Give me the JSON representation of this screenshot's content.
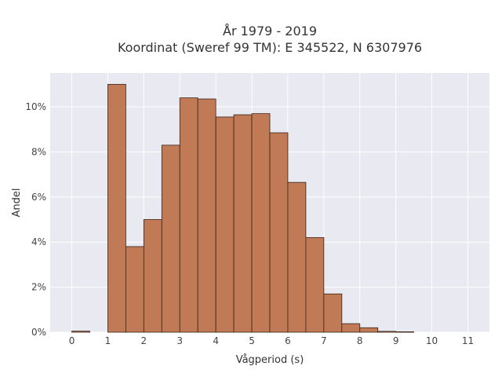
{
  "chart_data": {
    "type": "bar",
    "title_line1": "År 1979 - 2019",
    "title_line2": "Koordinat (Sweref 99 TM): E 345522, N 6307976",
    "xlabel": "Vågperiod (s)",
    "ylabel": "Andel",
    "xlim": [
      -0.6,
      11.6
    ],
    "ylim": [
      0,
      11.5
    ],
    "x_ticks": [
      0,
      1,
      2,
      3,
      4,
      5,
      6,
      7,
      8,
      9,
      10,
      11
    ],
    "x_tick_labels": [
      "0",
      "1",
      "2",
      "3",
      "4",
      "5",
      "6",
      "7",
      "8",
      "9",
      "10",
      "11"
    ],
    "y_ticks": [
      0,
      2,
      4,
      6,
      8,
      10
    ],
    "y_tick_labels": [
      "0%",
      "2%",
      "4%",
      "6%",
      "8%",
      "10%"
    ],
    "bin_width": 0.5,
    "bins": [
      {
        "start": 0.0,
        "end": 0.5,
        "value": 0.05
      },
      {
        "start": 0.5,
        "end": 1.0,
        "value": 0
      },
      {
        "start": 1.0,
        "end": 1.5,
        "value": 11.0
      },
      {
        "start": 1.5,
        "end": 2.0,
        "value": 3.8
      },
      {
        "start": 2.0,
        "end": 2.5,
        "value": 5.0
      },
      {
        "start": 2.5,
        "end": 3.0,
        "value": 8.3
      },
      {
        "start": 3.0,
        "end": 3.5,
        "value": 10.4
      },
      {
        "start": 3.5,
        "end": 4.0,
        "value": 10.35
      },
      {
        "start": 4.0,
        "end": 4.5,
        "value": 9.55
      },
      {
        "start": 4.5,
        "end": 5.0,
        "value": 9.65
      },
      {
        "start": 5.0,
        "end": 5.5,
        "value": 9.7
      },
      {
        "start": 5.5,
        "end": 6.0,
        "value": 8.85
      },
      {
        "start": 6.0,
        "end": 6.5,
        "value": 6.65
      },
      {
        "start": 6.5,
        "end": 7.0,
        "value": 4.2
      },
      {
        "start": 7.0,
        "end": 7.5,
        "value": 1.7
      },
      {
        "start": 7.5,
        "end": 8.0,
        "value": 0.38
      },
      {
        "start": 8.0,
        "end": 8.5,
        "value": 0.2
      },
      {
        "start": 8.5,
        "end": 9.0,
        "value": 0.04
      },
      {
        "start": 9.0,
        "end": 9.5,
        "value": 0.02
      }
    ],
    "bar_color": "#c07b56",
    "bar_edge_color": "#3a2418",
    "plot_background": "#e8e9f1",
    "grid": true,
    "grid_color": "#ffffff",
    "legend": "none"
  }
}
